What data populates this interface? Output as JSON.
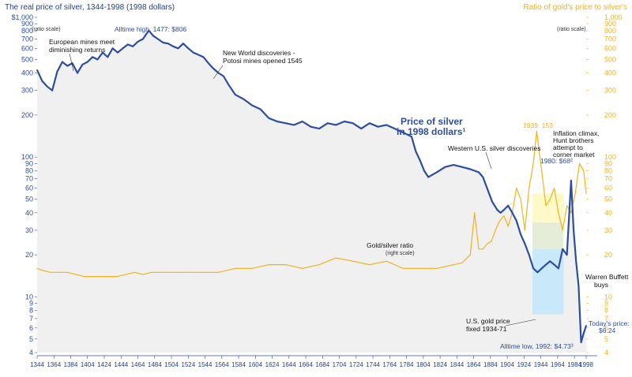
{
  "chart_data": {
    "type": "line",
    "title_left": "The real price of silver, 1344-1998 (1998 dollars)",
    "title_right": "Ratio of gold's price to silver's",
    "scale_note": "(ratio scale)",
    "y_log": true,
    "ylim": [
      4,
      1000
    ],
    "xlim": [
      1344,
      1998
    ],
    "colors": {
      "silver": "#2b4ea0",
      "ratio": "#f2b21b",
      "background": "#f0f0f0",
      "highlight_yellow": "#fff8c8",
      "highlight_blue": "#c9e9fb"
    },
    "y_ticks": [
      {
        "v": 1000,
        "label": "$1,000"
      },
      {
        "v": 900,
        "label": "900"
      },
      {
        "v": 800,
        "label": "800"
      },
      {
        "v": 700,
        "label": "700"
      },
      {
        "v": 600,
        "label": "600"
      },
      {
        "v": 500,
        "label": "500"
      },
      {
        "v": 400,
        "label": "400"
      },
      {
        "v": 300,
        "label": "300"
      },
      {
        "v": 200,
        "label": "200"
      },
      {
        "v": 100,
        "label": "100"
      },
      {
        "v": 90,
        "label": "90"
      },
      {
        "v": 80,
        "label": "80"
      },
      {
        "v": 70,
        "label": "70"
      },
      {
        "v": 60,
        "label": "60"
      },
      {
        "v": 50,
        "label": "50"
      },
      {
        "v": 40,
        "label": "40"
      },
      {
        "v": 30,
        "label": "30"
      },
      {
        "v": 20,
        "label": "20"
      },
      {
        "v": 10,
        "label": "10"
      },
      {
        "v": 9,
        "label": "9"
      },
      {
        "v": 8,
        "label": "8"
      },
      {
        "v": 7,
        "label": "7"
      },
      {
        "v": 6,
        "label": "6"
      },
      {
        "v": 5,
        "label": "5"
      },
      {
        "v": 4,
        "label": "4"
      }
    ],
    "y_ticks_right": [
      {
        "v": 1000,
        "label": "1,000"
      },
      {
        "v": 900,
        "label": "900"
      },
      {
        "v": 800,
        "label": "800"
      },
      {
        "v": 700,
        "label": "700"
      },
      {
        "v": 600,
        "label": "600"
      },
      {
        "v": 500,
        "label": "500"
      },
      {
        "v": 400,
        "label": "400"
      },
      {
        "v": 300,
        "label": "300"
      },
      {
        "v": 200,
        "label": "200"
      },
      {
        "v": 100,
        "label": "100"
      },
      {
        "v": 90,
        "label": "90"
      },
      {
        "v": 80,
        "label": "80"
      },
      {
        "v": 70,
        "label": "70"
      },
      {
        "v": 60,
        "label": "60"
      },
      {
        "v": 50,
        "label": "50"
      },
      {
        "v": 40,
        "label": "40"
      },
      {
        "v": 30,
        "label": "30"
      },
      {
        "v": 20,
        "label": "20"
      },
      {
        "v": 10,
        "label": "10"
      },
      {
        "v": 9,
        "label": "9"
      },
      {
        "v": 8,
        "label": "8"
      },
      {
        "v": 7,
        "label": "7"
      },
      {
        "v": 6,
        "label": "6"
      },
      {
        "v": 5,
        "label": "5"
      },
      {
        "v": 4,
        "label": "4"
      }
    ],
    "x_ticks": [
      1344,
      1364,
      1384,
      1404,
      1424,
      1444,
      1464,
      1484,
      1504,
      1524,
      1544,
      1564,
      1584,
      1604,
      1624,
      1644,
      1664,
      1684,
      1704,
      1724,
      1744,
      1764,
      1784,
      1804,
      1824,
      1844,
      1864,
      1884,
      1904,
      1924,
      1944,
      1964,
      1984,
      1998
    ],
    "series": [
      {
        "name": "Price of silver in 1998 dollars",
        "x": [
          1344,
          1350,
          1356,
          1362,
          1368,
          1374,
          1380,
          1386,
          1392,
          1398,
          1404,
          1410,
          1416,
          1422,
          1428,
          1434,
          1440,
          1446,
          1452,
          1458,
          1464,
          1470,
          1477,
          1482,
          1488,
          1494,
          1500,
          1506,
          1512,
          1518,
          1524,
          1530,
          1536,
          1542,
          1548,
          1554,
          1560,
          1566,
          1572,
          1580,
          1590,
          1600,
          1610,
          1620,
          1630,
          1640,
          1650,
          1660,
          1670,
          1680,
          1690,
          1700,
          1710,
          1720,
          1730,
          1740,
          1750,
          1760,
          1770,
          1780,
          1790,
          1795,
          1800,
          1805,
          1810,
          1815,
          1820,
          1830,
          1840,
          1850,
          1860,
          1870,
          1875,
          1880,
          1886,
          1892,
          1896,
          1900,
          1905,
          1910,
          1915,
          1920,
          1925,
          1930,
          1935,
          1940,
          1945,
          1950,
          1955,
          1960,
          1965,
          1970,
          1975,
          1980,
          1983,
          1986,
          1989,
          1992,
          1995,
          1998
        ],
        "values": [
          420,
          350,
          320,
          300,
          410,
          480,
          450,
          470,
          400,
          460,
          480,
          520,
          500,
          560,
          520,
          600,
          560,
          600,
          640,
          620,
          670,
          700,
          806,
          740,
          700,
          660,
          650,
          620,
          600,
          650,
          600,
          560,
          540,
          520,
          470,
          430,
          400,
          380,
          330,
          280,
          260,
          235,
          220,
          190,
          180,
          175,
          170,
          180,
          165,
          160,
          175,
          170,
          180,
          175,
          160,
          175,
          165,
          170,
          160,
          150,
          140,
          110,
          95,
          80,
          72,
          75,
          78,
          85,
          88,
          85,
          82,
          78,
          72,
          60,
          48,
          42,
          40,
          42,
          45,
          40,
          35,
          28,
          24,
          20,
          16,
          15,
          16,
          17,
          18,
          17,
          16,
          22,
          20,
          68,
          30,
          18,
          12,
          4.73,
          5.5,
          6.24
        ]
      },
      {
        "name": "Gold/silver ratio",
        "x": [
          1344,
          1350,
          1360,
          1380,
          1400,
          1420,
          1440,
          1460,
          1470,
          1480,
          1500,
          1520,
          1540,
          1560,
          1580,
          1600,
          1620,
          1640,
          1660,
          1680,
          1700,
          1720,
          1740,
          1760,
          1780,
          1800,
          1820,
          1840,
          1850,
          1860,
          1865,
          1870,
          1875,
          1880,
          1885,
          1890,
          1895,
          1900,
          1905,
          1910,
          1915,
          1920,
          1925,
          1930,
          1935,
          1939,
          1945,
          1950,
          1955,
          1960,
          1965,
          1970,
          1975,
          1980,
          1985,
          1990,
          1995,
          1998
        ],
        "values": [
          16,
          15.5,
          15,
          15,
          14,
          14,
          14,
          15,
          14.5,
          15,
          15,
          15,
          15,
          15,
          16,
          16,
          17,
          17,
          16,
          17,
          19,
          18,
          17,
          18,
          16,
          16,
          16,
          17,
          17.5,
          20,
          40,
          22,
          22,
          24,
          25,
          30,
          35,
          38,
          32,
          40,
          60,
          50,
          30,
          60,
          90,
          153,
          80,
          45,
          50,
          60,
          40,
          30,
          45,
          40,
          55,
          90,
          80,
          55
        ]
      }
    ],
    "annotations": {
      "european": [
        "European mines meet",
        "diminishing returns"
      ],
      "alltime_high": "Alltime high, 1477: $806",
      "new_world": [
        "New World discoveries -",
        "Potosi mines opened 1545"
      ],
      "price_label": [
        "Price of silver",
        "in 1998 dollars¹"
      ],
      "western": "Western U.S. silver discoveries",
      "ratio_label": "Gold/silver ratio",
      "ratio_sub": "(right scale)",
      "peak_1939": "1939: 153",
      "inflation": [
        "Inflation climax,",
        "Hunt brothers",
        "attempt to",
        "corner market"
      ],
      "v1980": "1980: $68²",
      "buffett": [
        "Warren Buffett",
        "buys"
      ],
      "gold_fixed": [
        "U.S. gold price",
        "fixed 1934-71"
      ],
      "alltime_low": "Alltime low, 1992: $4.73³",
      "today": [
        "Today's price:",
        "$6.24"
      ]
    }
  }
}
